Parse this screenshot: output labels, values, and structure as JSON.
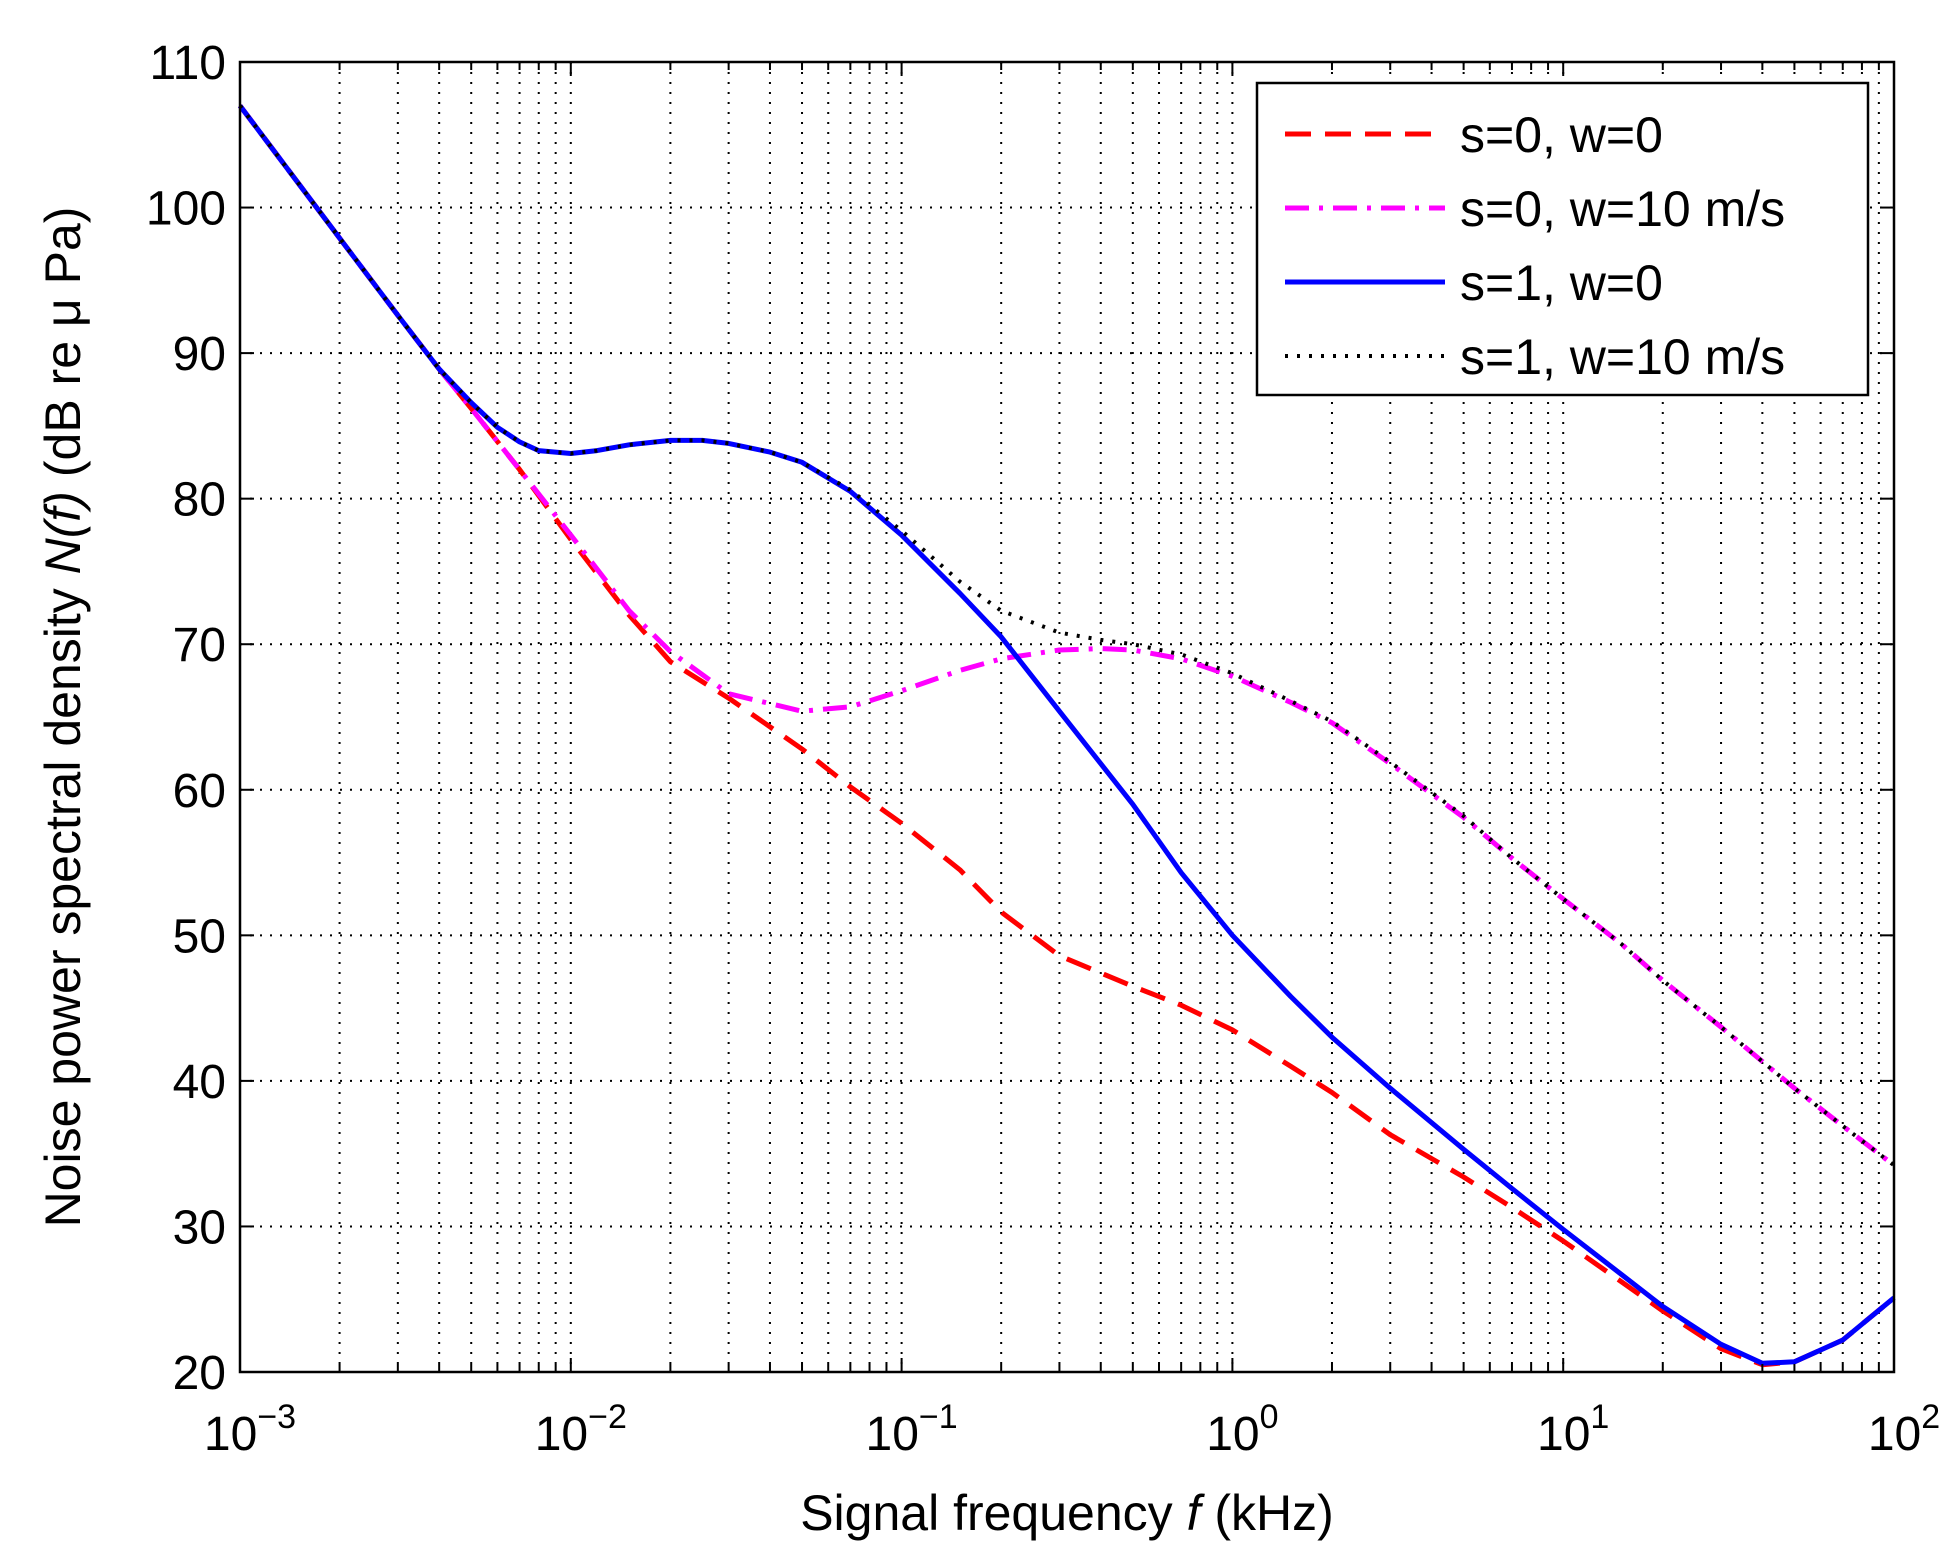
{
  "chart_data": {
    "type": "line",
    "title": "",
    "xlabel": "Signal frequency f (kHz)",
    "xlabel_parts": {
      "before": "Signal frequency ",
      "italic": "f",
      "after": " (kHz)"
    },
    "ylabel": "Noise power spectral density N(f) (dB re μ Pa)",
    "ylabel_parts": {
      "before": "Noise power spectral density ",
      "italic": "N(f)",
      "after": " (dB re μ Pa)"
    },
    "xscale": "log",
    "xlim": [
      0.001,
      100
    ],
    "ylim": [
      20,
      110
    ],
    "grid": true,
    "legend_position": "top-right",
    "x_ticks": [
      {
        "value": 0.001,
        "base": "10",
        "exp": "−3"
      },
      {
        "value": 0.01,
        "base": "10",
        "exp": "−2"
      },
      {
        "value": 0.1,
        "base": "10",
        "exp": "−1"
      },
      {
        "value": 1,
        "base": "10",
        "exp": "0"
      },
      {
        "value": 10,
        "base": "10",
        "exp": "1"
      },
      {
        "value": 100,
        "base": "10",
        "exp": "2"
      }
    ],
    "y_ticks": [
      20,
      30,
      40,
      50,
      60,
      70,
      80,
      90,
      100,
      110
    ],
    "series": [
      {
        "name": "s=0, w=0",
        "color": "#ff0000",
        "dash": "dashed",
        "x": [
          0.001,
          0.002,
          0.003,
          0.004,
          0.005,
          0.007,
          0.01,
          0.015,
          0.02,
          0.03,
          0.05,
          0.07,
          0.1,
          0.15,
          0.2,
          0.3,
          0.5,
          0.7,
          1,
          1.5,
          2,
          3,
          5,
          7,
          10,
          15,
          20,
          30,
          40,
          50,
          70,
          100
        ],
        "y": [
          107,
          97.9,
          92.6,
          88.9,
          86.2,
          82,
          77.2,
          72,
          68.8,
          66.3,
          62.8,
          60.2,
          57.7,
          54.5,
          51.6,
          48.6,
          46.5,
          45.2,
          43.5,
          41,
          39.2,
          36.3,
          33.4,
          31.3,
          29,
          26.2,
          24.2,
          21.6,
          20.5,
          20.7,
          22.2,
          25.1
        ]
      },
      {
        "name": "s=0, w=10 m/s",
        "color": "#ff00ff",
        "dash": "dashdot",
        "x": [
          0.001,
          0.002,
          0.003,
          0.004,
          0.005,
          0.007,
          0.01,
          0.015,
          0.02,
          0.03,
          0.05,
          0.07,
          0.1,
          0.15,
          0.2,
          0.3,
          0.4,
          0.5,
          0.7,
          1,
          1.5,
          2,
          3,
          5,
          7,
          10,
          15,
          20,
          30,
          50,
          70,
          100
        ],
        "y": [
          107,
          97.9,
          92.6,
          88.9,
          86.2,
          82,
          77.5,
          72.3,
          69.5,
          66.6,
          65.4,
          65.7,
          66.8,
          68.2,
          69,
          69.6,
          69.7,
          69.6,
          69,
          67.8,
          66,
          64.6,
          61.8,
          58.1,
          55.3,
          52.5,
          49.4,
          46.9,
          43.7,
          39.5,
          36.9,
          34.2
        ]
      },
      {
        "name": "s=1, w=0",
        "color": "#0000ff",
        "dash": "solid",
        "x": [
          0.001,
          0.002,
          0.003,
          0.004,
          0.005,
          0.006,
          0.007,
          0.008,
          0.01,
          0.012,
          0.015,
          0.02,
          0.025,
          0.03,
          0.04,
          0.05,
          0.07,
          0.1,
          0.15,
          0.2,
          0.3,
          0.5,
          0.7,
          1,
          1.5,
          2,
          3,
          5,
          7,
          10,
          15,
          20,
          30,
          40,
          50,
          70,
          100
        ],
        "y": [
          107,
          97.9,
          92.6,
          88.9,
          86.6,
          84.9,
          83.9,
          83.3,
          83.1,
          83.3,
          83.7,
          84,
          84,
          83.8,
          83.2,
          82.5,
          80.5,
          77.5,
          73.5,
          70.5,
          65.4,
          59,
          54.3,
          50,
          45.8,
          43,
          39.5,
          35.3,
          32.6,
          29.8,
          26.7,
          24.5,
          21.9,
          20.6,
          20.7,
          22.2,
          25.1
        ]
      },
      {
        "name": "s=1, w=10 m/s",
        "color": "#000000",
        "dash": "dotted",
        "x": [
          0.001,
          0.002,
          0.003,
          0.004,
          0.005,
          0.006,
          0.007,
          0.008,
          0.01,
          0.012,
          0.015,
          0.02,
          0.025,
          0.03,
          0.04,
          0.05,
          0.07,
          0.1,
          0.15,
          0.2,
          0.3,
          0.4,
          0.5,
          0.7,
          1,
          1.5,
          2,
          3,
          5,
          7,
          10,
          15,
          20,
          30,
          50,
          70,
          100
        ],
        "y": [
          107,
          97.9,
          92.6,
          88.9,
          86.6,
          84.9,
          83.9,
          83.3,
          83.1,
          83.3,
          83.7,
          84,
          84,
          83.8,
          83.2,
          82.5,
          80.6,
          77.8,
          74.3,
          72.3,
          70.8,
          70.3,
          70,
          69.3,
          68,
          66.1,
          64.7,
          61.9,
          58.2,
          55.3,
          52.5,
          49.4,
          46.9,
          43.7,
          39.5,
          36.9,
          34.2
        ]
      }
    ]
  }
}
